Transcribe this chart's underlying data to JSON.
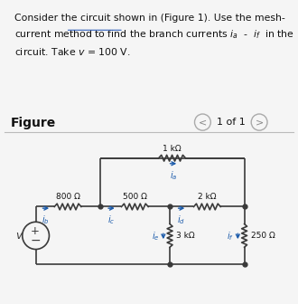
{
  "bg_top": "#deeef5",
  "bg_bot": "#f5f5f5",
  "line_color": "#3a3a3a",
  "arrow_color": "#1a5aaa",
  "text_color": "#111111",
  "nav_circle_color": "#aaaaaa",
  "sep_color": "#bbbbbb",
  "dot_color": "#3a3a3a",
  "vs_label": "v",
  "figure_label": "Figure",
  "page_label": "1 of 1",
  "R800": "800 Ω",
  "R500": "500 Ω",
  "R1k": "1 kΩ",
  "R2k": "2 kΩ",
  "R3k": "3 kΩ",
  "R250": "250 Ω",
  "ia": "i_a",
  "ib": "i_b",
  "ic": "i_c",
  "id": "i_d",
  "ie": "i_e",
  "if_": "i_f"
}
